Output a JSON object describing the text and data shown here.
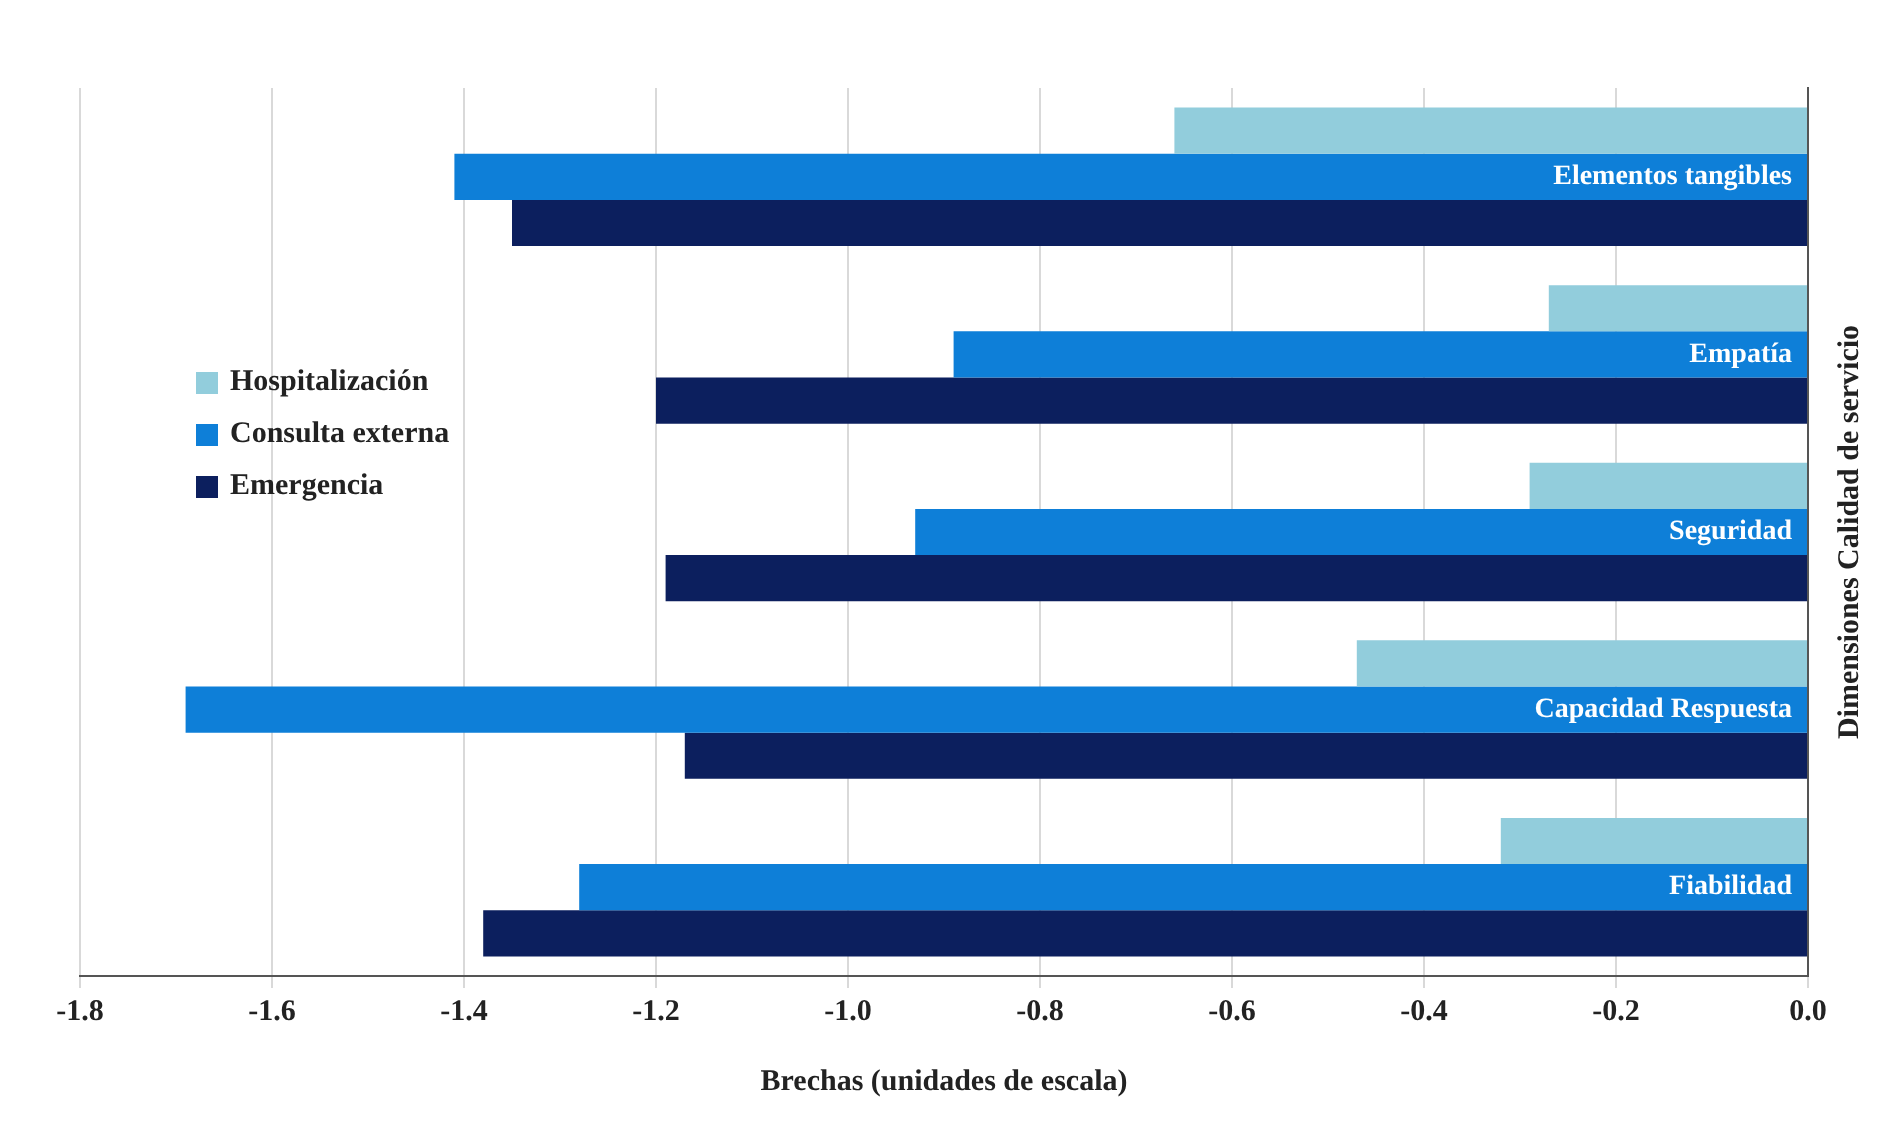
{
  "chart_data": {
    "type": "bar",
    "orientation": "horizontal",
    "xlabel": "Brechas (unidades de escala)",
    "ylabel": "Dimensiones Calidad de servicio",
    "categories": [
      "Elementos tangibles",
      "Empatía",
      "Seguridad",
      "Capacidad Respuesta",
      "Fiabilidad"
    ],
    "series": [
      {
        "name": "Hospitalización",
        "color": "#92cddc",
        "values": [
          -0.66,
          -0.27,
          -0.29,
          -0.47,
          -0.32
        ]
      },
      {
        "name": "Consulta externa",
        "color": "#0e7fd8",
        "values": [
          -1.41,
          -0.89,
          -0.93,
          -1.69,
          -1.28
        ]
      },
      {
        "name": "Emergencia",
        "color": "#0c1f5e",
        "values": [
          -1.35,
          -1.2,
          -1.19,
          -1.17,
          -1.38
        ]
      }
    ],
    "xlim": [
      -1.8,
      0
    ],
    "xticks": [
      {
        "value": -1.8,
        "label": "-1.8"
      },
      {
        "value": -1.6,
        "label": "-1.6"
      },
      {
        "value": -1.4,
        "label": "-1.4"
      },
      {
        "value": -1.2,
        "label": "-1.2"
      },
      {
        "value": -1.0,
        "label": "-1.0"
      },
      {
        "value": -0.8,
        "label": "-0.8"
      },
      {
        "value": -0.6,
        "label": "-0.6"
      },
      {
        "value": -0.4,
        "label": "-0.4"
      },
      {
        "value": -0.2,
        "label": "-0.2"
      },
      {
        "value": 0,
        "label": "0.0"
      }
    ],
    "grid": "x",
    "legend": "left"
  }
}
